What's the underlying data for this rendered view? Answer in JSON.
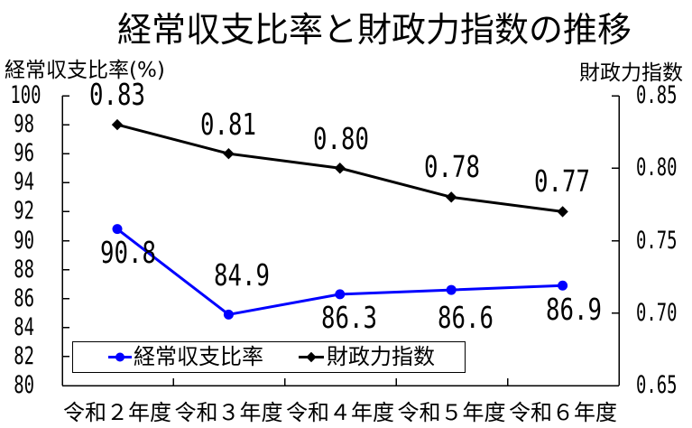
{
  "chart_data": {
    "type": "line",
    "title": "経常収支比率と財政力指数の推移",
    "xlabel": "",
    "ylabel": "経常収支比率(%)",
    "y2label": "財政力指数",
    "categories": [
      "令和２年度",
      "令和３年度",
      "令和４年度",
      "令和５年度",
      "令和６年度"
    ],
    "series": [
      {
        "name": "経常収支比率",
        "axis": "left",
        "values": [
          90.8,
          84.9,
          86.3,
          86.6,
          86.9
        ],
        "labels": [
          "90.8",
          "84.9",
          "86.3",
          "86.6",
          "86.9"
        ],
        "color": "#0000FF",
        "marker": "circle"
      },
      {
        "name": "財政力指数",
        "axis": "right",
        "values": [
          0.83,
          0.81,
          0.8,
          0.78,
          0.77
        ],
        "labels": [
          "0.83",
          "0.81",
          "0.80",
          "0.78",
          "0.77"
        ],
        "color": "#000000",
        "marker": "diamond"
      }
    ],
    "ylim": [
      80,
      100
    ],
    "y2lim": [
      0.65,
      0.85
    ],
    "yticks": [
      100,
      98,
      96,
      94,
      92,
      90,
      88,
      86,
      84,
      82,
      80
    ],
    "ytick_labels": [
      "100",
      "98",
      "96",
      "94",
      "92",
      "90",
      "88",
      "86",
      "84",
      "82",
      "80"
    ],
    "y2ticks": [
      0.85,
      0.8,
      0.75,
      0.7,
      0.65
    ],
    "y2tick_labels": [
      "0.85",
      "0.80",
      "0.75",
      "0.70",
      "0.65"
    ],
    "grid": false,
    "legend": {
      "position": "lower-left inside plot",
      "entries": [
        "経常収支比率",
        "財政力指数"
      ]
    }
  }
}
